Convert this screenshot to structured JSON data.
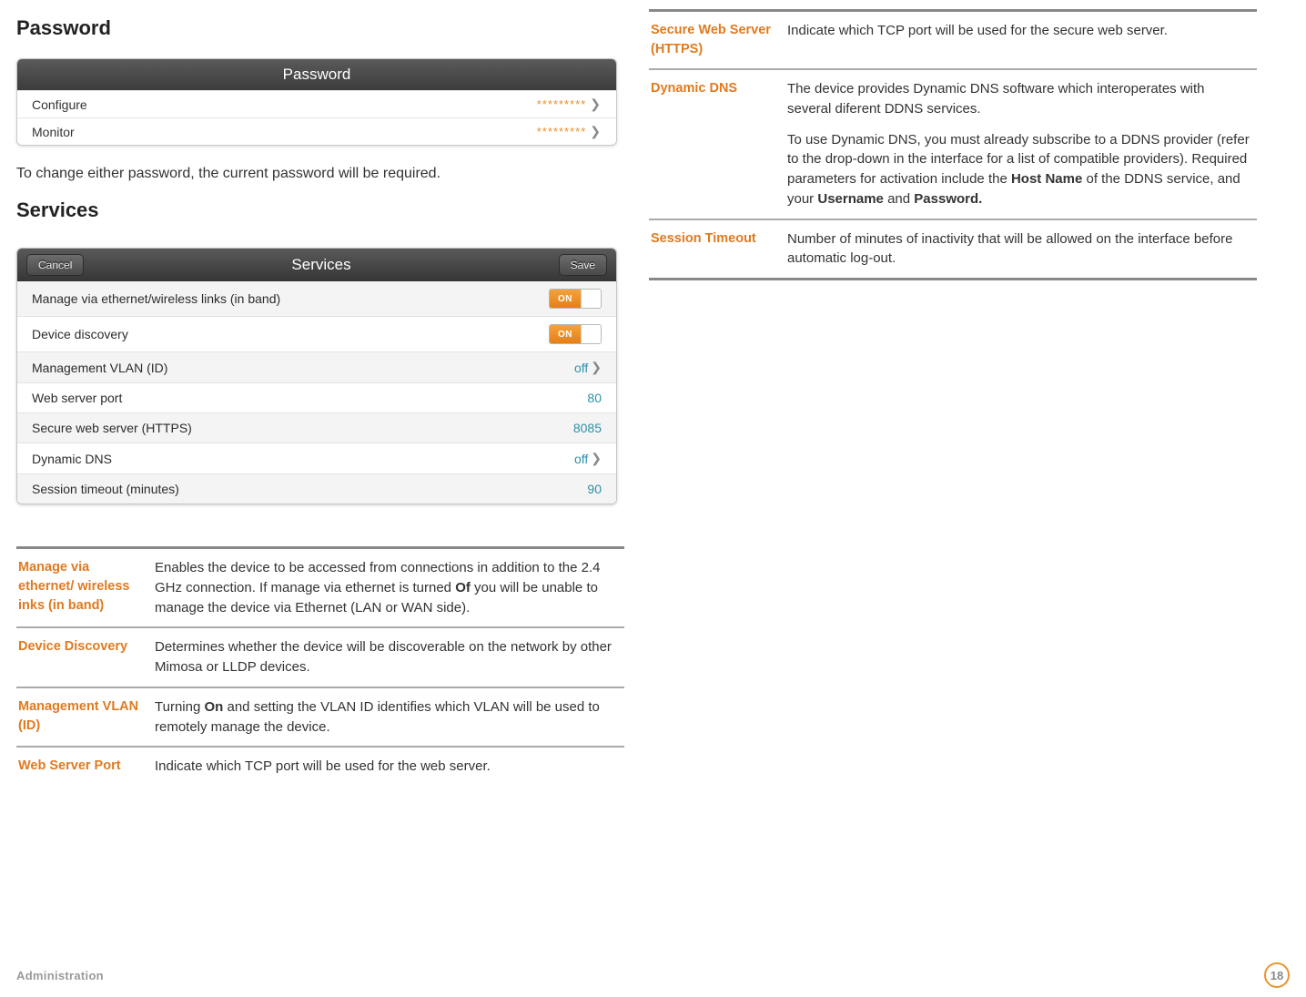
{
  "colors": {
    "accent_orange": "#e07a1f",
    "toggle_orange_top": "#f3a33c",
    "toggle_orange_bottom": "#e67f17",
    "link_teal": "#2f8fa8",
    "header_dark_top": "#5a5a5a",
    "header_dark_bottom": "#363636",
    "rule_gray": "#aaaaaa",
    "page_ring": "#e9952f"
  },
  "left": {
    "h_password": "Password",
    "pw_panel": {
      "title": "Password",
      "rows": [
        {
          "label": "Configure",
          "value": "*********"
        },
        {
          "label": "Monitor",
          "value": "*********"
        }
      ]
    },
    "note": "To change either password, the current password will be required.",
    "h_services": "Services",
    "sv_panel": {
      "cancel": "Cancel",
      "title": "Services",
      "save": "Save",
      "rows": [
        {
          "label": "Manage via ethernet/wireless links (in band)",
          "kind": "toggle",
          "value": "ON"
        },
        {
          "label": "Device discovery",
          "kind": "toggle",
          "value": "ON"
        },
        {
          "label": "Management VLAN (ID)",
          "kind": "offnav",
          "value": "off"
        },
        {
          "label": "Web server port",
          "kind": "num",
          "value": "80"
        },
        {
          "label": "Secure web server (HTTPS)",
          "kind": "num",
          "value": "8085"
        },
        {
          "label": "Dynamic DNS",
          "kind": "offnav",
          "value": "off"
        },
        {
          "label": "Session timeout (minutes)",
          "kind": "num",
          "value": "90"
        }
      ]
    },
    "defs": [
      {
        "term": "Manage via ethernet/ wireless inks (in band)",
        "desc_pre": "Enables the device to be accessed from connections in addition to the 2.4 GHz connection. If manage via ethernet is turned ",
        "bold1": "Of",
        "desc_post": " you will be unable to manage the device via Ethernet (LAN or WAN side)."
      },
      {
        "term": "Device Discovery",
        "desc_pre": "Determines whether the device will be discoverable on the network by other Mimosa or LLDP devices.",
        "bold1": "",
        "desc_post": ""
      },
      {
        "term": "Management VLAN (ID)",
        "desc_pre": "Turning ",
        "bold1": "On",
        "desc_post": " and setting the VLAN ID identifies which VLAN will be used to remotely manage the device."
      },
      {
        "term": "Web Server Port",
        "desc_pre": "Indicate which TCP port will be used for the web server.",
        "bold1": "",
        "desc_post": ""
      }
    ]
  },
  "right": {
    "defs": [
      {
        "term": "Secure Web Server (HTTPS)",
        "p1": "Indicate which TCP port will be used for the secure web server."
      },
      {
        "term": "Dynamic DNS",
        "p1": "The device provides Dynamic DNS software which interoperates with several diferent DDNS services.",
        "p2_pre": "To use Dynamic DNS, you must already subscribe to a DDNS provider (refer to the drop-down in the interface for a list of compatible providers). Required parameters for activation include the ",
        "p2_b1": "Host Name",
        "p2_mid": " of the DDNS service, and your ",
        "p2_b2": "Username",
        "p2_mid2": " and ",
        "p2_b3": "Password.",
        "p2_post": ""
      },
      {
        "term": "Session Timeout",
        "p1": "Number of minutes of inactivity that will be allowed on the interface before automatic log-out."
      }
    ]
  },
  "footer": {
    "section": "Administration",
    "page": "18"
  }
}
